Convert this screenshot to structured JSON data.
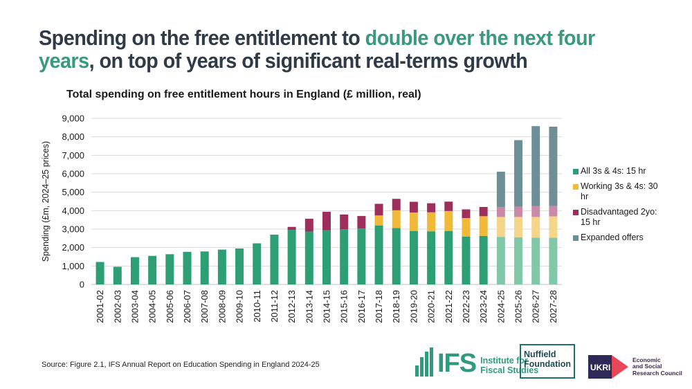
{
  "headline": {
    "part1": "Spending on the free entitlement to ",
    "highlight": "double over the next four years",
    "part2": ", on top of years of significant real-terms growth"
  },
  "source": "Source: Figure 2.1, IFS Annual Report on Education Spending in England 2024-25",
  "colors": {
    "headline_dark": "#2f3b47",
    "headline_accent": "#3a9a7c",
    "all_3s_4s": "#2e9e74",
    "working": "#f0b93a",
    "disadvantaged": "#9e2f5c",
    "expanded": "#6f8f96",
    "gridline": "#d9d9d9"
  },
  "logos": {
    "ifs_short": "IFS",
    "ifs_line1": "Institute for",
    "ifs_line2": "Fiscal Studies",
    "nuffield_line1": "Nuffield",
    "nuffield_line2": "Foundation",
    "ukri": "UKRI",
    "esrc_line1": "Economic",
    "esrc_line2": "and Social",
    "esrc_line3": "Research Council"
  },
  "chart_data": {
    "type": "bar",
    "stacked": true,
    "title": "Total spending on free entitlement hours in England (£ million, real)",
    "xlabel": "",
    "ylabel": "Spending (£m, 2024–25 prices)",
    "ylim": [
      0,
      9000
    ],
    "yticks": [
      0,
      1000,
      2000,
      3000,
      4000,
      5000,
      6000,
      7000,
      8000,
      9000
    ],
    "ytick_labels": [
      "0",
      "1,000",
      "2,000",
      "3,000",
      "4,000",
      "5,000",
      "6,000",
      "7,000",
      "8,000",
      "9,000"
    ],
    "grid": true,
    "legend_position": "right",
    "categories": [
      "2001-02",
      "2002-03",
      "2003-04",
      "2004-05",
      "2005-06",
      "2006-07",
      "2007-08",
      "2008-09",
      "2009-10",
      "2010-11",
      "2011-12",
      "2012-13",
      "2013-14",
      "2014-15",
      "2015-16",
      "2016-17",
      "2017-18",
      "2018-19",
      "2019-20",
      "2020-21",
      "2021-22",
      "2022-23",
      "2023-24",
      "2024-25",
      "2025-26",
      "2026-27",
      "2027-28"
    ],
    "projected_from": "2024-25",
    "series": [
      {
        "name": "All 3s & 4s: 15 hr",
        "color": "#2e9e74",
        "projected_color": "#80c8a8",
        "values": [
          1220,
          960,
          1480,
          1550,
          1640,
          1770,
          1790,
          1890,
          1950,
          2230,
          2700,
          2960,
          2870,
          2940,
          2990,
          3030,
          3200,
          3060,
          2900,
          2880,
          2900,
          2600,
          2630,
          2580,
          2560,
          2530,
          2530
        ]
      },
      {
        "name": "Working 3s & 4s: 30 hr",
        "color": "#f0b93a",
        "projected_color": "#f5d58a",
        "values": [
          0,
          0,
          0,
          0,
          0,
          0,
          0,
          0,
          0,
          0,
          0,
          0,
          0,
          0,
          0,
          0,
          540,
          960,
          1000,
          1030,
          1080,
          1000,
          1070,
          1080,
          1100,
          1130,
          1160
        ]
      },
      {
        "name": "Disadvantaged 2yo: 15 hr",
        "color": "#9e2f5c",
        "projected_color": "#c98aa6",
        "values": [
          0,
          0,
          0,
          0,
          0,
          0,
          0,
          0,
          0,
          0,
          0,
          160,
          690,
          1000,
          800,
          680,
          630,
          620,
          580,
          490,
          510,
          470,
          500,
          530,
          560,
          580,
          560
        ]
      },
      {
        "name": "Expanded offers",
        "color": "#6f8f96",
        "projected_color": "#6f8f96",
        "values": [
          0,
          0,
          0,
          0,
          0,
          0,
          0,
          0,
          0,
          0,
          0,
          0,
          0,
          0,
          0,
          0,
          0,
          0,
          0,
          0,
          0,
          0,
          0,
          1920,
          3600,
          4340,
          4300
        ]
      }
    ]
  }
}
